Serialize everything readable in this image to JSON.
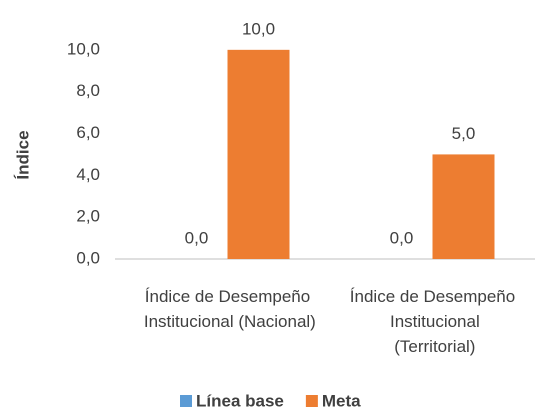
{
  "chart_data": {
    "type": "bar",
    "y_label": "Índice",
    "categories": [
      "Índice de Desempeño Institucional (Nacional)",
      "Índice de Desempeño Institucional (Territorial)"
    ],
    "series": [
      {
        "name": "Línea base",
        "color": "#5b9bd5",
        "values": [
          0,
          0
        ],
        "value_labels": [
          "0,0",
          "0,0"
        ]
      },
      {
        "name": "Meta",
        "color": "#ed7d31",
        "values": [
          10,
          5
        ],
        "value_labels": [
          "10,0",
          "5,0"
        ]
      }
    ],
    "ylim": [
      0,
      12
    ],
    "yticks": [
      {
        "value": 0,
        "label": "0,0"
      },
      {
        "value": 2,
        "label": "2,0"
      },
      {
        "value": 4,
        "label": "4,0"
      },
      {
        "value": 6,
        "label": "6,0"
      },
      {
        "value": 8,
        "label": "8,0"
      },
      {
        "value": 10,
        "label": "10,0"
      }
    ],
    "grid": false,
    "legend": "bottom"
  }
}
